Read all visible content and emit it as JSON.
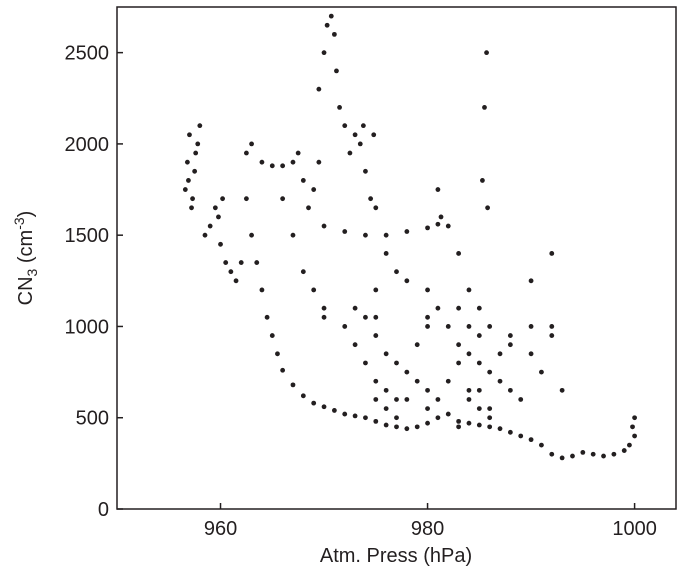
{
  "chart_data": {
    "type": "scatter",
    "x_label": "Atm. Press (hPa)",
    "y_label": {
      "base": "CN",
      "sub": "3",
      "mid": " (cm",
      "sup": "-3",
      "end": ")"
    },
    "color": "#231f20",
    "xlim": [
      950,
      1004
    ],
    "ylim": [
      0,
      2750
    ],
    "xticks": [
      960,
      980,
      1000
    ],
    "yticks": [
      0,
      500,
      1000,
      1500,
      2000,
      2500
    ],
    "grid": false,
    "x": [
      956.6,
      956.8,
      957,
      957.3,
      957.5,
      957.8,
      958,
      957.2,
      956.9,
      957.6,
      958.5,
      959,
      959.5,
      960,
      960.5,
      961,
      961.5,
      962,
      960.2,
      959.8,
      962.5,
      963,
      964,
      965,
      966,
      967,
      967.5,
      968,
      968.5,
      969,
      969.5,
      969.5,
      970,
      970.3,
      970.7,
      971,
      971.2,
      971.5,
      972,
      972.5,
      973,
      973.5,
      974,
      974.5,
      975,
      973.8,
      974.8,
      970,
      972,
      974,
      976,
      978,
      980,
      981,
      982,
      983,
      984,
      985,
      985.3,
      985.5,
      985.7,
      985.8,
      981,
      981.3,
      962.5,
      963,
      963.5,
      964,
      964.5,
      965,
      965.5,
      966,
      967,
      968,
      969,
      970,
      971,
      972,
      973,
      974,
      975,
      976,
      977,
      978,
      979,
      980,
      981,
      982,
      983,
      984,
      985,
      986,
      987,
      988,
      989,
      990,
      991,
      992,
      993,
      994,
      995,
      996,
      997,
      998,
      999,
      999.5,
      1000,
      1000,
      999.8,
      972,
      973,
      974,
      975,
      976,
      977,
      978,
      979,
      980,
      981,
      982,
      983,
      984,
      985,
      986,
      987,
      988,
      989,
      975,
      976,
      977,
      978,
      979,
      980,
      981,
      982,
      983,
      984,
      985,
      986,
      974,
      973,
      970,
      975,
      980,
      985,
      988,
      990,
      990,
      990,
      992,
      992,
      991,
      966,
      967,
      968,
      969,
      970,
      975,
      976,
      977,
      978,
      980,
      983,
      984,
      986,
      988,
      987,
      975,
      976,
      977,
      980,
      983,
      984,
      985,
      986,
      992,
      993
    ],
    "values": [
      1750,
      1900,
      2050,
      1700,
      1850,
      2000,
      2100,
      1650,
      1800,
      1950,
      1500,
      1550,
      1650,
      1450,
      1350,
      1300,
      1250,
      1350,
      1700,
      1600,
      1950,
      2000,
      1900,
      1880,
      1880,
      1900,
      1950,
      1800,
      1650,
      1750,
      1900,
      2300,
      2500,
      2650,
      2700,
      2600,
      2400,
      2200,
      2100,
      1950,
      2050,
      2000,
      1850,
      1700,
      1650,
      2100,
      2050,
      1550,
      1520,
      1500,
      1500,
      1520,
      1540,
      1560,
      1550,
      1400,
      1200,
      1100,
      1800,
      2200,
      2500,
      1650,
      1750,
      1600,
      1700,
      1500,
      1350,
      1200,
      1050,
      950,
      850,
      760,
      680,
      620,
      580,
      560,
      540,
      520,
      510,
      500,
      480,
      460,
      450,
      440,
      450,
      470,
      500,
      520,
      480,
      470,
      460,
      450,
      440,
      420,
      400,
      380,
      350,
      300,
      280,
      290,
      310,
      300,
      290,
      300,
      320,
      350,
      400,
      500,
      450,
      1000,
      1100,
      1050,
      950,
      850,
      800,
      750,
      900,
      1050,
      1100,
      1000,
      900,
      850,
      800,
      750,
      700,
      650,
      600,
      700,
      650,
      600,
      600,
      700,
      650,
      600,
      700,
      800,
      650,
      550,
      500,
      800,
      900,
      1100,
      1050,
      1000,
      950,
      900,
      850,
      1000,
      1250,
      1000,
      950,
      750,
      1700,
      1500,
      1300,
      1200,
      1050,
      1200,
      1400,
      1300,
      1250,
      1200,
      1100,
      1000,
      1000,
      950,
      850,
      600,
      550,
      500,
      550,
      450,
      600,
      650,
      550,
      1400,
      650
    ]
  }
}
